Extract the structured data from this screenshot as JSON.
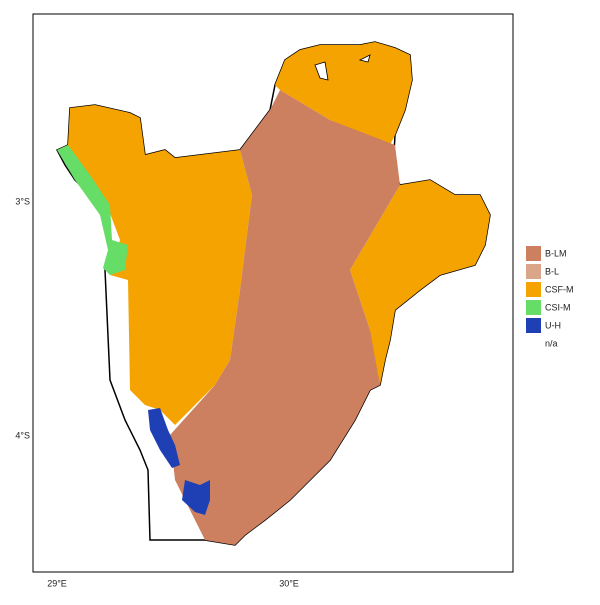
{
  "map": {
    "y_ticks": [
      "3°S",
      "4°S"
    ],
    "x_ticks": [
      "29°E",
      "30°E"
    ],
    "legend": [
      {
        "label": "B-LM",
        "color": "#cd8060"
      },
      {
        "label": "B-L",
        "color": "#dba58a"
      },
      {
        "label": "CSF-M",
        "color": "#f5a300"
      },
      {
        "label": "CSI-M",
        "color": "#66dd66"
      },
      {
        "label": "U-H",
        "color": "#1f3fb5"
      },
      {
        "label": "n/a"
      }
    ]
  }
}
